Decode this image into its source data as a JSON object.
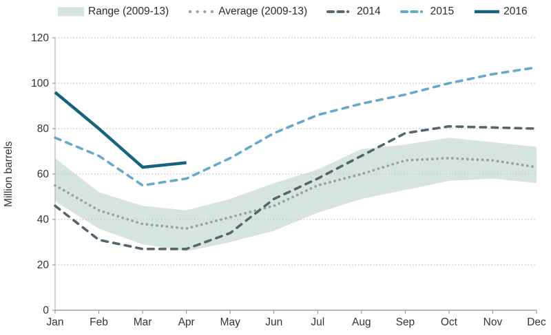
{
  "legend": {
    "items": [
      {
        "label": "Range (2009-13)",
        "marker": "band"
      },
      {
        "label": "Average (2009-13)",
        "marker": "dotted",
        "ref": 0
      },
      {
        "label": "2014",
        "marker": "dash-dash-dot",
        "ref": 1
      },
      {
        "label": "2015",
        "marker": "dash-dash-dot",
        "ref": 2
      },
      {
        "label": "2016",
        "marker": "solid",
        "ref": 3
      }
    ]
  },
  "chart_data": {
    "type": "line",
    "title": "",
    "xlabel": "",
    "ylabel": "Million barrels",
    "categories": [
      "Jan",
      "Feb",
      "Mar",
      "Apr",
      "May",
      "Jun",
      "Jul",
      "Aug",
      "Sep",
      "Oct",
      "Nov",
      "Dec"
    ],
    "ylim": [
      0,
      120
    ],
    "yticks": [
      0,
      20,
      40,
      60,
      80,
      100,
      120
    ],
    "grid": "horizontal-dotted",
    "legend_position": "top",
    "band": {
      "name": "Range (2009-13)",
      "color": "#d6e4df",
      "upper": [
        67,
        52,
        46,
        44,
        49,
        56,
        62,
        71,
        73,
        76,
        74,
        72
      ],
      "lower": [
        48,
        36,
        29,
        26,
        30,
        35,
        43,
        49,
        53,
        57,
        58,
        56
      ]
    },
    "series": [
      {
        "name": "Average (2009-13)",
        "style": "dotted",
        "color": "#a09f9d",
        "values": [
          55,
          44,
          38,
          36,
          41,
          46,
          55,
          60,
          66,
          67,
          66,
          63
        ]
      },
      {
        "name": "2014",
        "style": "dashed",
        "color": "#53656f",
        "values": [
          46,
          31,
          27,
          27,
          34,
          49,
          58,
          68,
          78,
          81,
          80.5,
          80
        ]
      },
      {
        "name": "2015",
        "style": "dashed",
        "color": "#64aac8",
        "values": [
          76,
          68,
          55,
          58,
          67,
          78,
          86,
          91,
          95,
          100,
          104,
          107
        ]
      },
      {
        "name": "2016",
        "style": "solid",
        "color": "#15637f",
        "values": [
          96,
          80,
          63,
          65,
          null,
          null,
          null,
          null,
          null,
          null,
          null,
          null
        ]
      }
    ]
  }
}
